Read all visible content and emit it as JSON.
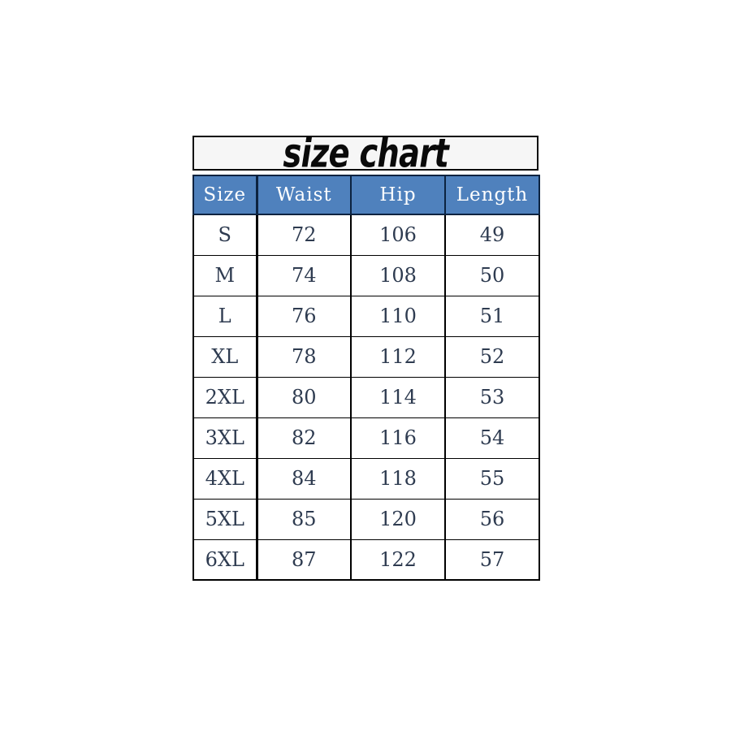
{
  "title": "size chart",
  "chart_data": {
    "type": "table",
    "title": "size chart",
    "columns": [
      "Size",
      "Waist",
      "Hip",
      "Length"
    ],
    "rows": [
      [
        "S",
        "72",
        "106",
        "49"
      ],
      [
        "M",
        "74",
        "108",
        "50"
      ],
      [
        "L",
        "76",
        "110",
        "51"
      ],
      [
        "XL",
        "78",
        "112",
        "52"
      ],
      [
        "2XL",
        "80",
        "114",
        "53"
      ],
      [
        "3XL",
        "82",
        "116",
        "54"
      ],
      [
        "4XL",
        "84",
        "118",
        "55"
      ],
      [
        "5XL",
        "85",
        "120",
        "56"
      ],
      [
        "6XL",
        "87",
        "122",
        "57"
      ]
    ]
  },
  "colors": {
    "header_bg": "#4f81bd",
    "header_text": "#ffffff",
    "header_border": "#0c2340",
    "body_text": "#2e3b50",
    "table_border": "#000000",
    "title_text": "#0a0a0a",
    "title_border": "#0a0a0a",
    "title_box_bg": "#f6f6f6"
  }
}
